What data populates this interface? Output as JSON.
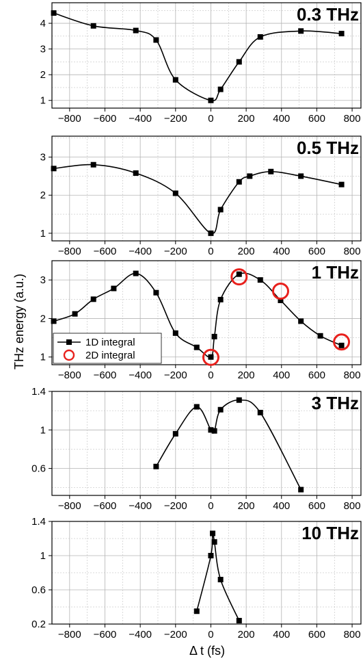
{
  "figure": {
    "ylabel": "THz energy (a.u.)",
    "xlabel": "Δ t (fs)"
  },
  "legend": {
    "line_label": "1D integral",
    "circle_label": "2D integral"
  },
  "colors": {
    "line": "#000000",
    "circle": "#e8201c",
    "grid": "#b4b4b4"
  },
  "chart_data": [
    {
      "type": "line",
      "title": "0.3 THz",
      "xlim": [
        -900,
        850
      ],
      "ylim": [
        0.7,
        4.8
      ],
      "xticks": [
        -800,
        -600,
        -400,
        -200,
        0,
        200,
        400,
        600,
        800
      ],
      "yticks": [
        1,
        2,
        3,
        4
      ],
      "grid": true,
      "series": [
        {
          "x": [
            -890,
            -665,
            -425,
            -310,
            -200,
            0,
            55,
            160,
            280,
            510,
            740
          ],
          "y": [
            4.4,
            3.9,
            3.72,
            3.35,
            1.8,
            1.0,
            1.43,
            2.5,
            3.47,
            3.7,
            3.6
          ]
        }
      ]
    },
    {
      "type": "line",
      "title": "0.5 THz",
      "xlim": [
        -900,
        850
      ],
      "ylim": [
        0.8,
        3.55
      ],
      "xticks": [
        -800,
        -600,
        -400,
        -200,
        0,
        200,
        400,
        600,
        800
      ],
      "yticks": [
        1,
        2,
        3
      ],
      "grid": true,
      "series": [
        {
          "x": [
            -890,
            -665,
            -425,
            -200,
            0,
            55,
            160,
            220,
            340,
            510,
            740
          ],
          "y": [
            2.7,
            2.8,
            2.58,
            2.05,
            1.0,
            1.62,
            2.35,
            2.5,
            2.62,
            2.5,
            2.28
          ]
        }
      ]
    },
    {
      "type": "line",
      "title": "1 THz",
      "xlim": [
        -900,
        850
      ],
      "ylim": [
        0.8,
        3.5
      ],
      "xticks": [
        -800,
        -600,
        -400,
        -200,
        0,
        200,
        400,
        600,
        800
      ],
      "yticks": [
        1,
        2,
        3
      ],
      "grid": true,
      "legend_position": "lower-left",
      "series": [
        {
          "name": "1D integral",
          "marker": "square",
          "x": [
            -890,
            -770,
            -665,
            -550,
            -425,
            -310,
            -200,
            -80,
            0,
            20,
            55,
            160,
            280,
            395,
            510,
            620,
            740
          ],
          "y": [
            1.93,
            2.12,
            2.5,
            2.78,
            3.17,
            2.67,
            1.62,
            1.25,
            1.0,
            1.53,
            2.49,
            3.15,
            3.0,
            2.47,
            1.93,
            1.55,
            1.3
          ]
        },
        {
          "name": "2D integral",
          "marker": "circle",
          "x": [
            0,
            160,
            395,
            740
          ],
          "y": [
            0.99,
            3.08,
            2.71,
            1.39
          ]
        }
      ]
    },
    {
      "type": "line",
      "title": "3 THz",
      "xlim": [
        -900,
        850
      ],
      "ylim": [
        0.32,
        1.4
      ],
      "xticks": [
        -800,
        -600,
        -400,
        -200,
        0,
        200,
        400,
        600,
        800
      ],
      "yticks": [
        0.6,
        1.0,
        1.4
      ],
      "grid": true,
      "series": [
        {
          "x": [
            -310,
            -200,
            -80,
            0,
            20,
            55,
            160,
            280,
            510
          ],
          "y": [
            0.62,
            0.96,
            1.24,
            1.0,
            0.99,
            1.21,
            1.31,
            1.18,
            0.38
          ]
        }
      ]
    },
    {
      "type": "line",
      "title": "10 THz",
      "xlim": [
        -900,
        850
      ],
      "ylim": [
        0.2,
        1.4
      ],
      "xticks": [
        -800,
        -600,
        -400,
        -200,
        0,
        200,
        400,
        600,
        800
      ],
      "yticks": [
        0.2,
        0.6,
        1.0,
        1.4
      ],
      "grid": true,
      "series": [
        {
          "x": [
            -80,
            0,
            10,
            20,
            55,
            160
          ],
          "y": [
            0.35,
            1.0,
            1.26,
            1.16,
            0.72,
            0.24
          ]
        }
      ]
    }
  ]
}
